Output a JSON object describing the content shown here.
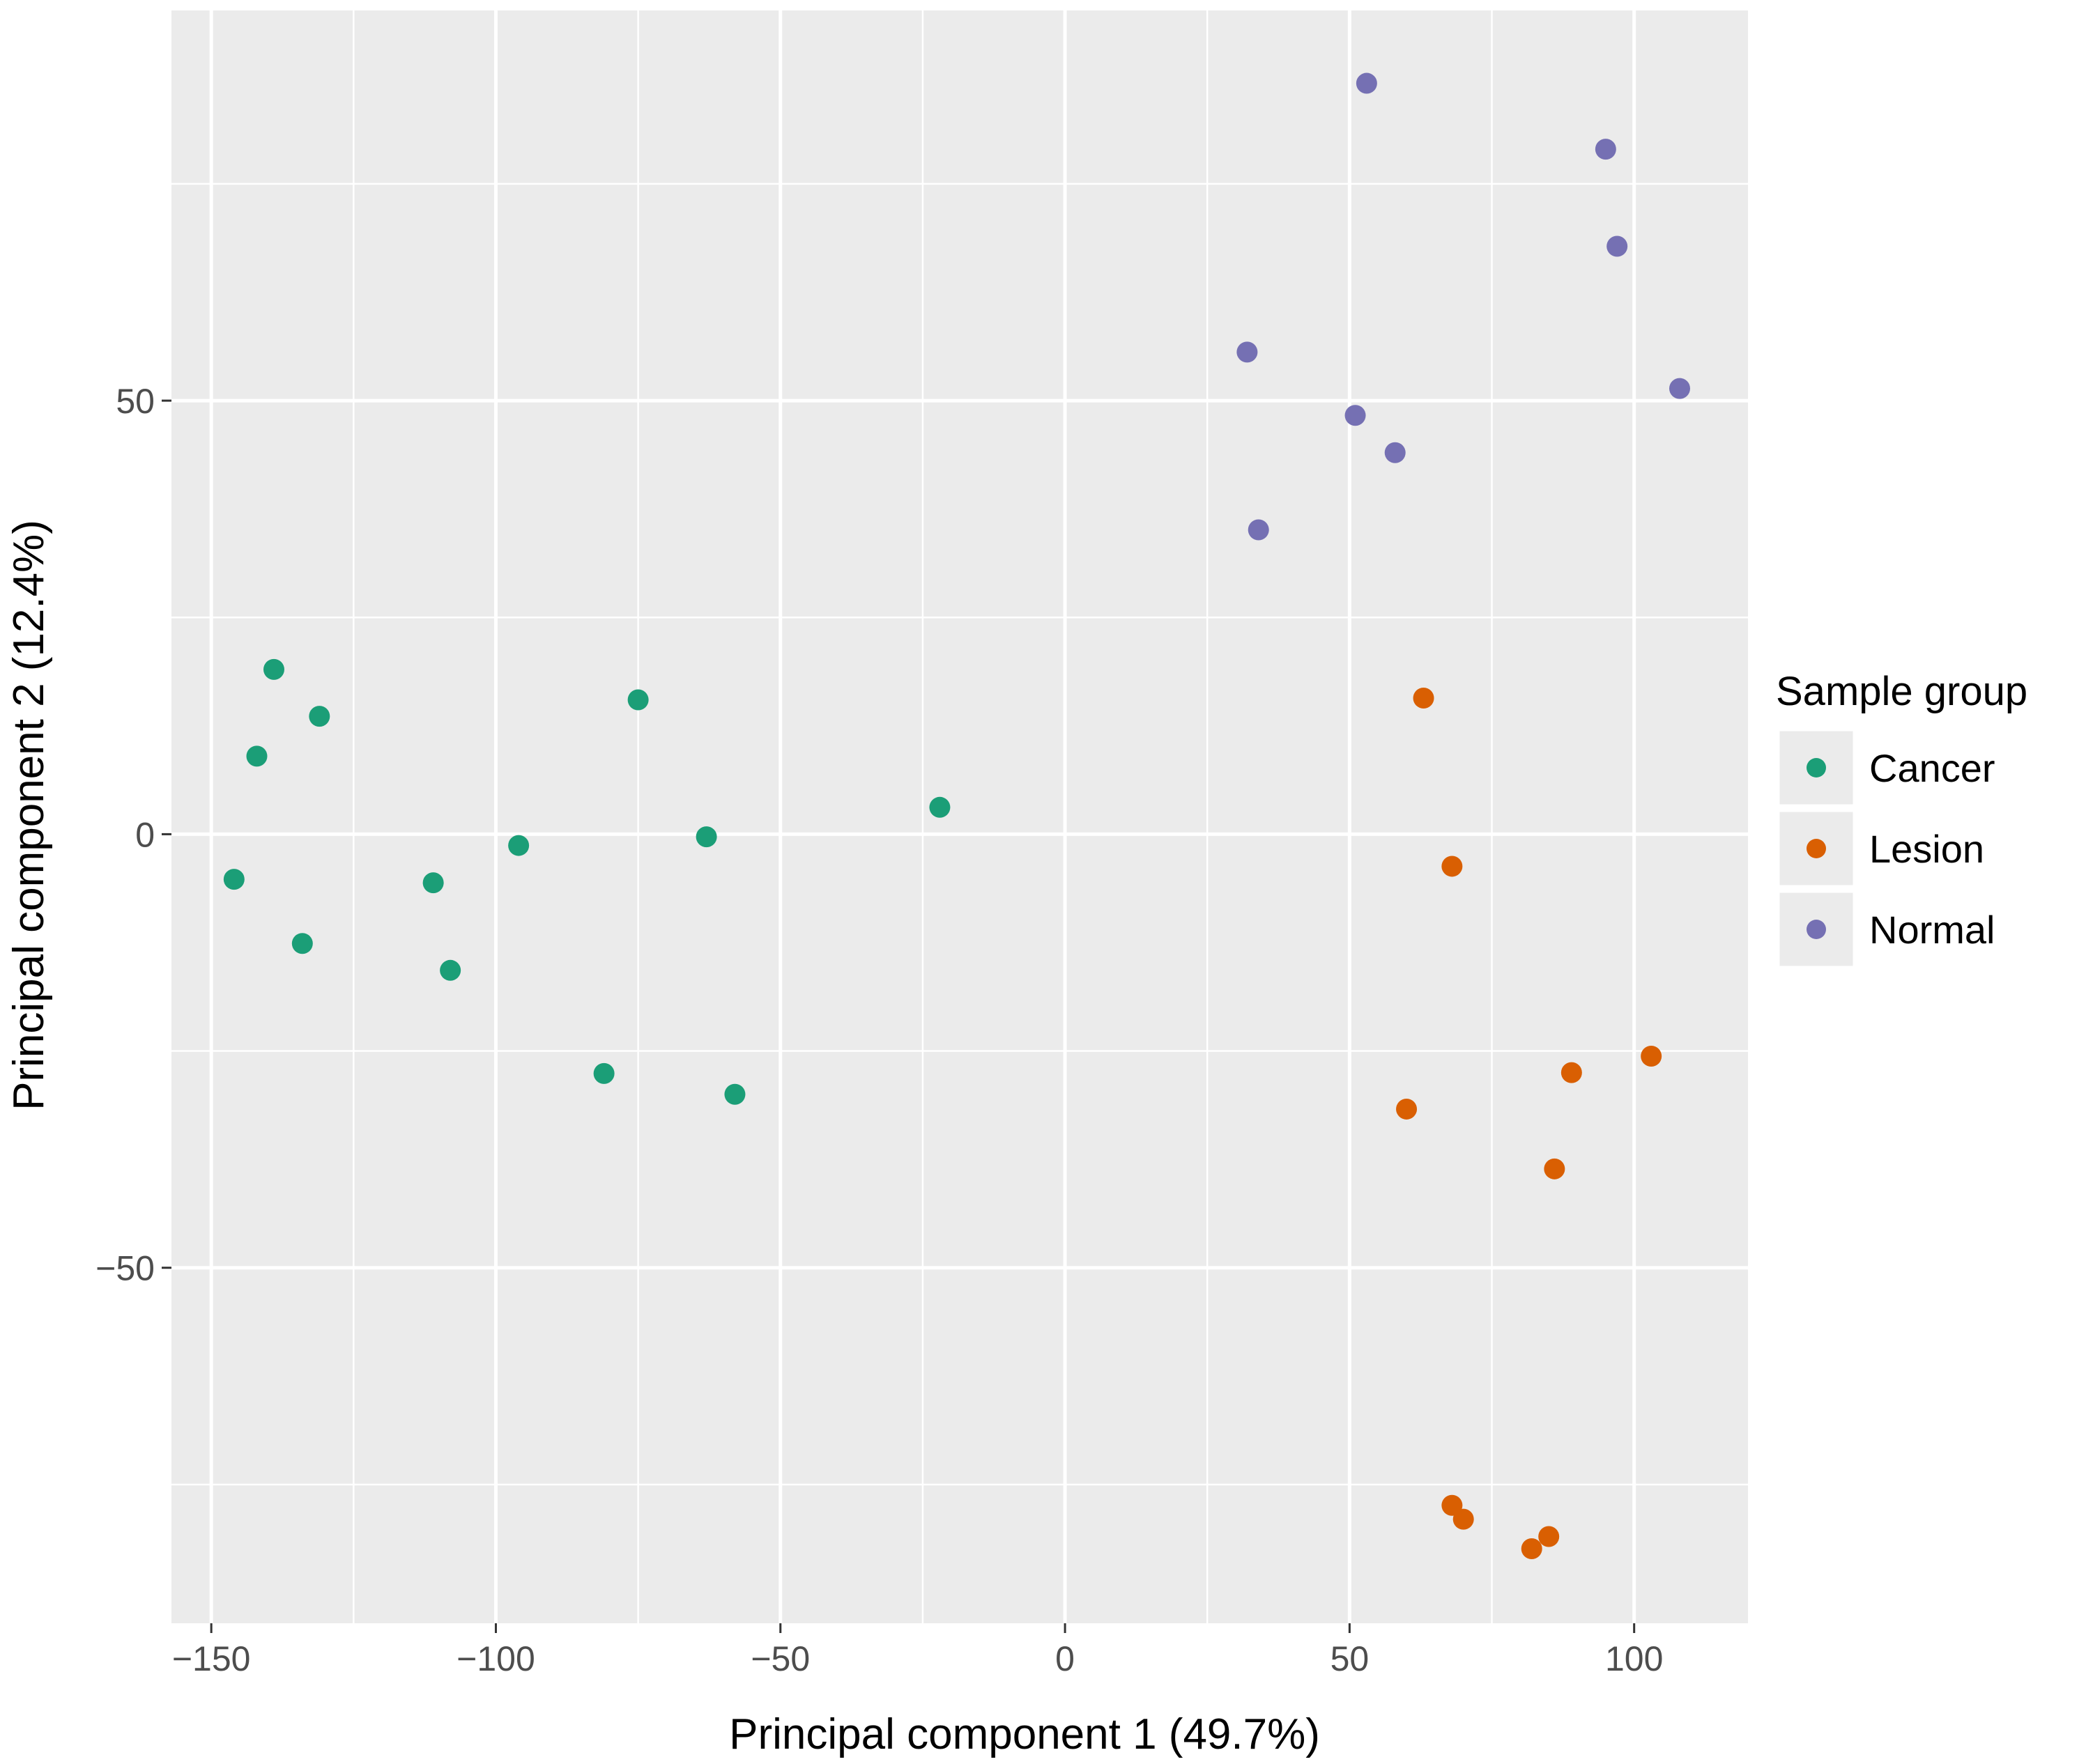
{
  "chart_data": {
    "type": "scatter",
    "title": "",
    "xlabel": "Principal component 1 (49.7%)",
    "ylabel": "Principal component 2 (12.4%)",
    "xlim": [
      -157,
      120
    ],
    "ylim": [
      -91,
      95
    ],
    "xticks": [
      -150,
      -100,
      -50,
      0,
      50,
      100
    ],
    "xtick_labels": [
      "−150",
      "−100",
      "−50",
      "0",
      "50",
      "100"
    ],
    "yticks": [
      -50,
      0,
      50
    ],
    "ytick_labels": [
      "−50",
      "0",
      "50"
    ],
    "grid": true,
    "legend": {
      "title": "Sample group",
      "position": "right"
    },
    "series": [
      {
        "name": "Cancer",
        "color": "#1b9e77",
        "points": [
          [
            -139,
            19
          ],
          [
            -131,
            13.6
          ],
          [
            -142,
            9
          ],
          [
            -75,
            15.5
          ],
          [
            -146,
            -5.2
          ],
          [
            -111,
            -5.6
          ],
          [
            -96,
            -1.3
          ],
          [
            -63,
            -0.3
          ],
          [
            -22,
            3.1
          ],
          [
            -134,
            -12.6
          ],
          [
            -108,
            -15.7
          ],
          [
            -81,
            -27.6
          ],
          [
            -58,
            -30
          ]
        ]
      },
      {
        "name": "Lesion",
        "color": "#d95f02",
        "points": [
          [
            63,
            15.7
          ],
          [
            68,
            -3.7
          ],
          [
            60,
            -31.7
          ],
          [
            89,
            -27.5
          ],
          [
            103,
            -25.6
          ],
          [
            86,
            -38.6
          ],
          [
            68,
            -77.4
          ],
          [
            70,
            -79
          ],
          [
            85,
            -81
          ],
          [
            82,
            -82.4
          ]
        ]
      },
      {
        "name": "Normal",
        "color": "#7570b3",
        "points": [
          [
            53,
            86.6
          ],
          [
            95,
            79
          ],
          [
            97,
            67.8
          ],
          [
            32,
            55.6
          ],
          [
            108,
            51.4
          ],
          [
            51,
            48.3
          ],
          [
            58,
            44
          ],
          [
            34,
            35.1
          ]
        ]
      }
    ]
  }
}
